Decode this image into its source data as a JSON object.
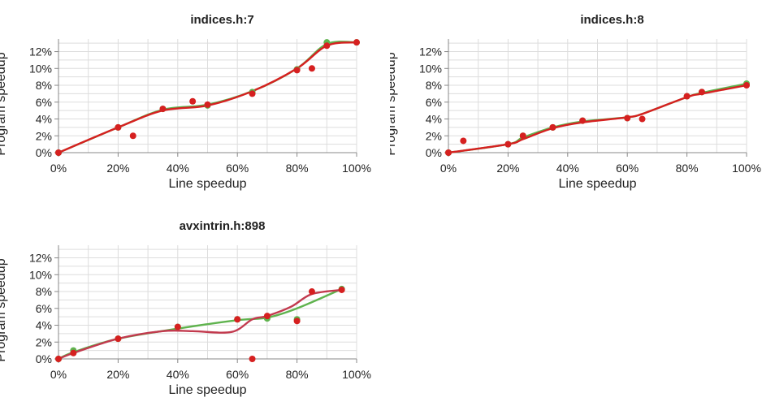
{
  "chart_data": [
    {
      "type": "scatter",
      "title": "indices.h:7",
      "xlabel": "Line speedup",
      "ylabel": "Program speedup",
      "xlim": [
        0,
        100
      ],
      "ylim": [
        0,
        13.5
      ],
      "xticks": [
        "0%",
        "20%",
        "40%",
        "60%",
        "80%",
        "100%"
      ],
      "yticks": [
        "0%",
        "2%",
        "4%",
        "6%",
        "8%",
        "10%",
        "12%"
      ],
      "grid": true,
      "series": [
        {
          "color": "#5fb34e",
          "line": [
            [
              0,
              0
            ],
            [
              20,
              3.0
            ],
            [
              35,
              5.1
            ],
            [
              50,
              5.7
            ],
            [
              65,
              7.3
            ],
            [
              80,
              10.0
            ],
            [
              90,
              12.9
            ],
            [
              100,
              13.1
            ]
          ],
          "points": [
            [
              0,
              0
            ],
            [
              20,
              3.0
            ],
            [
              35,
              5.2
            ],
            [
              50,
              5.6
            ],
            [
              65,
              7.2
            ],
            [
              80,
              9.9
            ],
            [
              90,
              13.1
            ],
            [
              100,
              13.1
            ]
          ]
        },
        {
          "color": "#d62020",
          "line": [
            [
              0,
              0
            ],
            [
              20,
              3.0
            ],
            [
              35,
              5.0
            ],
            [
              50,
              5.6
            ],
            [
              65,
              7.3
            ],
            [
              80,
              10.0
            ],
            [
              90,
              12.7
            ],
            [
              100,
              13.1
            ]
          ],
          "points": [
            [
              0,
              0
            ],
            [
              20,
              3.0
            ],
            [
              25,
              2.0
            ],
            [
              35,
              5.2
            ],
            [
              45,
              6.1
            ],
            [
              50,
              5.7
            ],
            [
              65,
              7.0
            ],
            [
              80,
              9.8
            ],
            [
              85,
              10.0
            ],
            [
              90,
              12.7
            ],
            [
              100,
              13.1
            ]
          ]
        }
      ]
    },
    {
      "type": "scatter",
      "title": "indices.h:8",
      "xlabel": "Line speedup",
      "ylabel": "Program speedup",
      "xlim": [
        0,
        100
      ],
      "ylim": [
        0,
        13.5
      ],
      "xticks": [
        "0%",
        "20%",
        "40%",
        "60%",
        "80%",
        "100%"
      ],
      "yticks": [
        "0%",
        "2%",
        "4%",
        "6%",
        "8%",
        "10%",
        "12%"
      ],
      "grid": true,
      "series": [
        {
          "color": "#5fb34e",
          "line": [
            [
              0,
              0
            ],
            [
              20,
              1.0
            ],
            [
              25,
              1.8
            ],
            [
              35,
              3.0
            ],
            [
              45,
              3.7
            ],
            [
              60,
              4.2
            ],
            [
              65,
              4.6
            ],
            [
              80,
              6.6
            ],
            [
              85,
              7.1
            ],
            [
              100,
              8.2
            ]
          ],
          "points": [
            [
              0,
              0
            ],
            [
              20,
              1.0
            ],
            [
              25,
              2.0
            ],
            [
              35,
              3.0
            ],
            [
              45,
              3.8
            ],
            [
              60,
              4.1
            ],
            [
              80,
              6.7
            ],
            [
              85,
              7.2
            ],
            [
              100,
              8.2
            ]
          ]
        },
        {
          "color": "#d62020",
          "line": [
            [
              0,
              0
            ],
            [
              20,
              1.0
            ],
            [
              25,
              1.6
            ],
            [
              35,
              2.9
            ],
            [
              45,
              3.6
            ],
            [
              60,
              4.2
            ],
            [
              65,
              4.6
            ],
            [
              80,
              6.6
            ],
            [
              85,
              7.0
            ],
            [
              100,
              8.0
            ]
          ],
          "points": [
            [
              0,
              0
            ],
            [
              5,
              1.4
            ],
            [
              20,
              1.0
            ],
            [
              25,
              2.0
            ],
            [
              35,
              3.0
            ],
            [
              45,
              3.8
            ],
            [
              60,
              4.1
            ],
            [
              65,
              4.0
            ],
            [
              80,
              6.7
            ],
            [
              85,
              7.2
            ],
            [
              100,
              8.0
            ]
          ]
        }
      ]
    },
    {
      "type": "scatter",
      "title": "avxintrin.h:898",
      "xlabel": "Line speedup",
      "ylabel": "Program speedup",
      "xlim": [
        0,
        100
      ],
      "ylim": [
        0,
        13.5
      ],
      "xticks": [
        "0%",
        "20%",
        "40%",
        "60%",
        "80%",
        "100%"
      ],
      "yticks": [
        "0%",
        "2%",
        "4%",
        "6%",
        "8%",
        "10%",
        "12%"
      ],
      "grid": true,
      "series": [
        {
          "color": "#5fb34e",
          "line": [
            [
              0,
              0
            ],
            [
              5,
              0.8
            ],
            [
              20,
              2.4
            ],
            [
              40,
              3.6
            ],
            [
              60,
              4.6
            ],
            [
              70,
              4.9
            ],
            [
              80,
              6.0
            ],
            [
              95,
              8.3
            ]
          ],
          "points": [
            [
              0,
              0
            ],
            [
              5,
              1.0
            ],
            [
              20,
              2.4
            ],
            [
              40,
              3.8
            ],
            [
              60,
              4.7
            ],
            [
              70,
              4.8
            ],
            [
              80,
              4.7
            ],
            [
              95,
              8.3
            ]
          ]
        },
        {
          "color": "#c23a4e",
          "line": [
            [
              0,
              0
            ],
            [
              5,
              0.7
            ],
            [
              20,
              2.4
            ],
            [
              35,
              3.3
            ],
            [
              45,
              3.3
            ],
            [
              58,
              3.2
            ],
            [
              65,
              4.7
            ],
            [
              70,
              5.1
            ],
            [
              78,
              6.2
            ],
            [
              85,
              7.7
            ],
            [
              95,
              8.2
            ]
          ],
          "points": [
            [
              0,
              0
            ],
            [
              5,
              0.7
            ],
            [
              20,
              2.4
            ],
            [
              40,
              3.8
            ],
            [
              60,
              4.7
            ],
            [
              65,
              0.0
            ],
            [
              70,
              5.1
            ],
            [
              80,
              4.5
            ],
            [
              85,
              8.0
            ],
            [
              95,
              8.2
            ]
          ]
        }
      ]
    }
  ]
}
